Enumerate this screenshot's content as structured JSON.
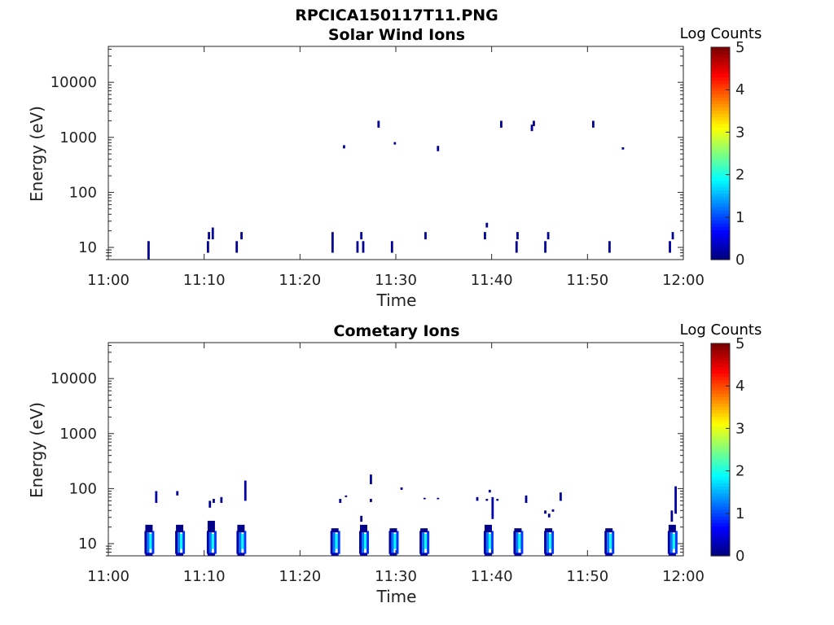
{
  "figure": {
    "filename_title": "RPCICA150117T11.PNG"
  },
  "colorbar": {
    "label": "Log Counts",
    "ticks": [
      "0",
      "1",
      "2",
      "3",
      "4",
      "5"
    ],
    "range": [
      0,
      5
    ],
    "colormap": "jet"
  },
  "chart_data": [
    {
      "type": "heatmap",
      "title": "Solar Wind Ions",
      "xlabel": "Time",
      "ylabel": "Energy (eV)",
      "x_ticks": [
        "11:00",
        "11:10",
        "11:20",
        "11:30",
        "11:40",
        "11:50",
        "12:00"
      ],
      "x_range_minutes": [
        0,
        60
      ],
      "y_ticks": [
        "10",
        "100",
        "1000",
        "10000"
      ],
      "y_scale": "log",
      "y_range": [
        6,
        45000
      ],
      "cells": [
        {
          "t": 4.2,
          "e_lo": 6,
          "e_hi": 13,
          "v": 0.1
        },
        {
          "t": 10.4,
          "e_lo": 8,
          "e_hi": 13,
          "v": 0.1
        },
        {
          "t": 10.5,
          "e_lo": 14,
          "e_hi": 19,
          "v": 0.1
        },
        {
          "t": 10.9,
          "e_lo": 14,
          "e_hi": 23,
          "v": 0.1
        },
        {
          "t": 13.4,
          "e_lo": 8,
          "e_hi": 13,
          "v": 0.1
        },
        {
          "t": 13.9,
          "e_lo": 14,
          "e_hi": 19,
          "v": 0.1
        },
        {
          "t": 23.4,
          "e_lo": 8,
          "e_hi": 19,
          "v": 0.1
        },
        {
          "t": 24.6,
          "e_lo": 630,
          "e_hi": 720,
          "v": 0.1
        },
        {
          "t": 26.0,
          "e_lo": 8,
          "e_hi": 13,
          "v": 0.1
        },
        {
          "t": 26.4,
          "e_lo": 14,
          "e_hi": 19,
          "v": 0.15
        },
        {
          "t": 26.6,
          "e_lo": 8,
          "e_hi": 13,
          "v": 0.1
        },
        {
          "t": 28.2,
          "e_lo": 1500,
          "e_hi": 2000,
          "v": 0.1
        },
        {
          "t": 29.6,
          "e_lo": 8,
          "e_hi": 13,
          "v": 0.1
        },
        {
          "t": 29.9,
          "e_lo": 740,
          "e_hi": 820,
          "v": 0.1
        },
        {
          "t": 33.1,
          "e_lo": 14,
          "e_hi": 19,
          "v": 0.1
        },
        {
          "t": 34.4,
          "e_lo": 560,
          "e_hi": 700,
          "v": 0.1
        },
        {
          "t": 39.3,
          "e_lo": 14,
          "e_hi": 19,
          "v": 0.1
        },
        {
          "t": 39.5,
          "e_lo": 23,
          "e_hi": 28,
          "v": 0.1
        },
        {
          "t": 41.0,
          "e_lo": 1500,
          "e_hi": 2000,
          "v": 0.1
        },
        {
          "t": 42.6,
          "e_lo": 8,
          "e_hi": 13,
          "v": 0.1
        },
        {
          "t": 42.7,
          "e_lo": 14,
          "e_hi": 19,
          "v": 0.1
        },
        {
          "t": 44.2,
          "e_lo": 1300,
          "e_hi": 1700,
          "v": 0.1
        },
        {
          "t": 44.4,
          "e_lo": 1600,
          "e_hi": 2000,
          "v": 0.1
        },
        {
          "t": 45.6,
          "e_lo": 8,
          "e_hi": 13,
          "v": 0.1
        },
        {
          "t": 45.9,
          "e_lo": 14,
          "e_hi": 19,
          "v": 0.1
        },
        {
          "t": 50.6,
          "e_lo": 1500,
          "e_hi": 2000,
          "v": 0.1
        },
        {
          "t": 52.3,
          "e_lo": 8,
          "e_hi": 13,
          "v": 0.1
        },
        {
          "t": 53.7,
          "e_lo": 600,
          "e_hi": 660,
          "v": 0.1
        },
        {
          "t": 58.6,
          "e_lo": 8,
          "e_hi": 13,
          "v": 0.15
        },
        {
          "t": 58.9,
          "e_lo": 14,
          "e_hi": 19,
          "v": 0.1
        }
      ]
    },
    {
      "type": "heatmap",
      "title": "Cometary Ions",
      "xlabel": "Time",
      "ylabel": "Energy (eV)",
      "x_ticks": [
        "11:00",
        "11:10",
        "11:20",
        "11:30",
        "11:40",
        "11:50",
        "12:00"
      ],
      "x_range_minutes": [
        0,
        60
      ],
      "y_ticks": [
        "10",
        "100",
        "1000",
        "10000"
      ],
      "y_scale": "log",
      "y_range": [
        6,
        45000
      ],
      "bursts": [
        {
          "t": 4.2,
          "hi": 22
        },
        {
          "t": 7.4,
          "hi": 22
        },
        {
          "t": 10.7,
          "hi": 26
        },
        {
          "t": 13.8,
          "hi": 22
        },
        {
          "t": 23.6,
          "hi": 19
        },
        {
          "t": 26.6,
          "hi": 22
        },
        {
          "t": 29.7,
          "hi": 19
        },
        {
          "t": 32.9,
          "hi": 19
        },
        {
          "t": 39.6,
          "hi": 22
        },
        {
          "t": 42.7,
          "hi": 19
        },
        {
          "t": 45.9,
          "hi": 19
        },
        {
          "t": 52.2,
          "hi": 19
        },
        {
          "t": 58.8,
          "hi": 22
        }
      ],
      "cells": [
        {
          "t": 5.0,
          "e_lo": 55,
          "e_hi": 90,
          "v": 0.2
        },
        {
          "t": 7.2,
          "e_lo": 75,
          "e_hi": 90,
          "v": 0.15
        },
        {
          "t": 10.6,
          "e_lo": 45,
          "e_hi": 60,
          "v": 0.1
        },
        {
          "t": 11.0,
          "e_lo": 55,
          "e_hi": 65,
          "v": 0.1
        },
        {
          "t": 11.8,
          "e_lo": 55,
          "e_hi": 70,
          "v": 0.1
        },
        {
          "t": 14.3,
          "e_lo": 60,
          "e_hi": 140,
          "v": 0.2
        },
        {
          "t": 24.2,
          "e_lo": 55,
          "e_hi": 65,
          "v": 0.1
        },
        {
          "t": 24.8,
          "e_lo": 70,
          "e_hi": 75,
          "v": 0.1
        },
        {
          "t": 26.4,
          "e_lo": 25,
          "e_hi": 32,
          "v": 0.1
        },
        {
          "t": 27.4,
          "e_lo": 120,
          "e_hi": 180,
          "v": 0.1
        },
        {
          "t": 27.4,
          "e_lo": 57,
          "e_hi": 65,
          "v": 0.1
        },
        {
          "t": 30.6,
          "e_lo": 95,
          "e_hi": 105,
          "v": 0.1
        },
        {
          "t": 33.0,
          "e_lo": 64,
          "e_hi": 68,
          "v": 0.1
        },
        {
          "t": 34.4,
          "e_lo": 64,
          "e_hi": 68,
          "v": 0.1
        },
        {
          "t": 38.5,
          "e_lo": 60,
          "e_hi": 70,
          "v": 0.1
        },
        {
          "t": 39.5,
          "e_lo": 60,
          "e_hi": 65,
          "v": 0.1
        },
        {
          "t": 39.8,
          "e_lo": 85,
          "e_hi": 95,
          "v": 0.1
        },
        {
          "t": 40.1,
          "e_lo": 28,
          "e_hi": 70,
          "v": 0.2
        },
        {
          "t": 40.6,
          "e_lo": 60,
          "e_hi": 65,
          "v": 0.1
        },
        {
          "t": 43.6,
          "e_lo": 55,
          "e_hi": 75,
          "v": 0.1
        },
        {
          "t": 45.6,
          "e_lo": 35,
          "e_hi": 40,
          "v": 0.1
        },
        {
          "t": 46.0,
          "e_lo": 30,
          "e_hi": 35,
          "v": 0.1
        },
        {
          "t": 46.4,
          "e_lo": 38,
          "e_hi": 42,
          "v": 0.1
        },
        {
          "t": 47.2,
          "e_lo": 60,
          "e_hi": 85,
          "v": 0.15
        },
        {
          "t": 58.8,
          "e_lo": 25,
          "e_hi": 40,
          "v": 0.1
        },
        {
          "t": 59.2,
          "e_lo": 35,
          "e_hi": 110,
          "v": 0.2
        }
      ]
    }
  ]
}
